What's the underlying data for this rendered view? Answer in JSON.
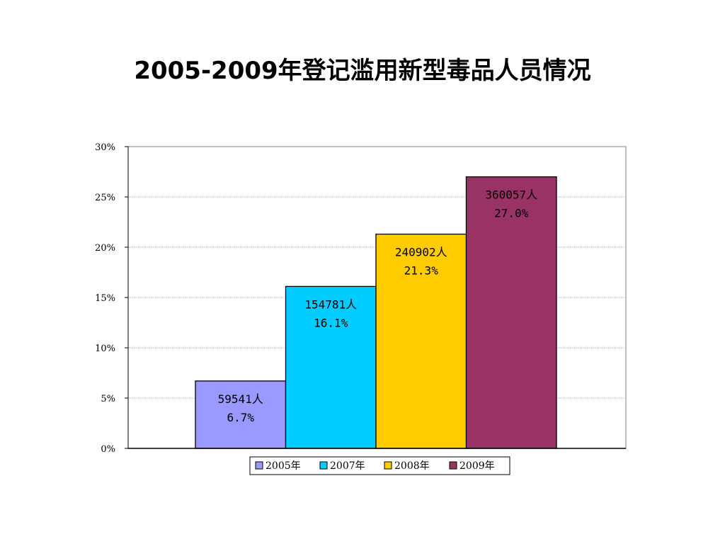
{
  "title": "2005-2009年登记滥用新型毒品人员情况",
  "chart_data": {
    "type": "bar",
    "categories": [
      "2005年",
      "2007年",
      "2008年",
      "2009年"
    ],
    "values": [
      6.7,
      16.1,
      21.3,
      27.0
    ],
    "counts": [
      "59541人",
      "154781人",
      "240902人",
      "360057人"
    ],
    "value_labels": [
      "6.7%",
      "16.1%",
      "21.3%",
      "27.0%"
    ],
    "colors": [
      "#9999ff",
      "#00ccff",
      "#ffcc00",
      "#993366"
    ],
    "ylim": [
      0,
      30
    ],
    "yticks": [
      0,
      5,
      10,
      15,
      20,
      25,
      30
    ],
    "ytick_labels": [
      "0%",
      "5%",
      "10%",
      "15%",
      "20%",
      "25%",
      "30%"
    ],
    "grid": true,
    "legend": "bottom",
    "xlabel": "",
    "ylabel": ""
  }
}
